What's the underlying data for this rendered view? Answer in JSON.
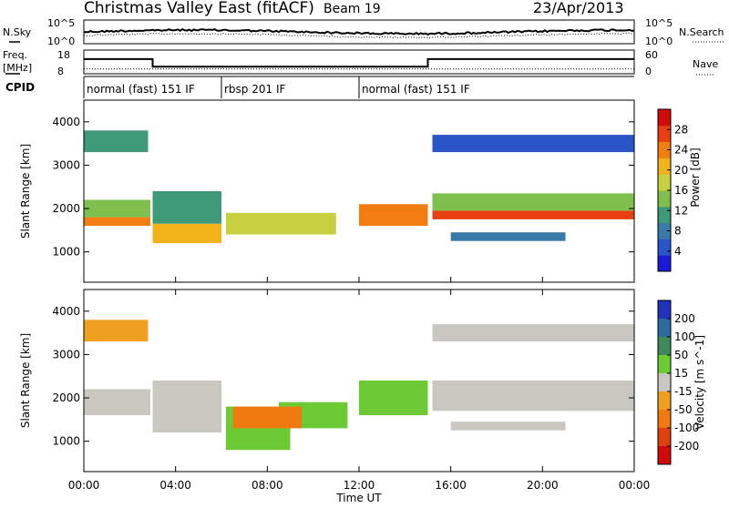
{
  "header": {
    "title": "Christmas Valley East (fitACF)",
    "beam": "Beam 19",
    "date": "23/Apr/2013"
  },
  "noise_panel": {
    "left_label": "N.Sky",
    "right_label": "N.Search",
    "left_ticks": [
      "10^5",
      "10^0"
    ],
    "right_ticks": [
      "10^5",
      "10^0"
    ]
  },
  "freq_panel": {
    "left_label_line1": "Freq.",
    "left_label_line2": "[MHz]",
    "right_label": "Nave",
    "left_ticks": [
      18,
      8
    ],
    "right_ticks": [
      60,
      0
    ],
    "freq_steps": [
      {
        "start_h": 0,
        "end_h": 3,
        "freq": 14.2
      },
      {
        "start_h": 3,
        "end_h": 15,
        "freq": 11.0
      },
      {
        "start_h": 15,
        "end_h": 24,
        "freq": 14.2
      }
    ],
    "nave_level": 12
  },
  "cpid": {
    "label": "CPID",
    "segments": [
      {
        "start_h": 0,
        "end_h": 6,
        "text": "normal (fast) 151 IF"
      },
      {
        "start_h": 6,
        "end_h": 12,
        "text": "rbsp 201 IF"
      },
      {
        "start_h": 12,
        "end_h": 24,
        "text": "normal (fast) 151 IF"
      }
    ]
  },
  "chart_data": [
    {
      "type": "heatmap",
      "name_panel": "power",
      "ylabel": "Slant Range [km]",
      "yticks": [
        1000,
        2000,
        3000,
        4000
      ],
      "ylim": [
        300,
        4500
      ],
      "colorbar": {
        "title": "Power [dB]",
        "ticks": [
          4,
          8,
          12,
          16,
          20,
          24,
          28
        ],
        "range": [
          0,
          32
        ],
        "colors": [
          "#1a1ad8",
          "#2a55c8",
          "#3a7aa8",
          "#3e9a78",
          "#7fbf4d",
          "#c8d040",
          "#f2b21a",
          "#f27d10",
          "#e84010",
          "#d10a0a"
        ]
      },
      "bands": [
        {
          "t0": 0.0,
          "t1": 2.9,
          "r0": 1600,
          "r1": 1800,
          "val": 24
        },
        {
          "t0": 0.0,
          "t1": 2.9,
          "r0": 1800,
          "r1": 2200,
          "val": 14
        },
        {
          "t0": 3.0,
          "t1": 6.0,
          "r0": 1200,
          "r1": 1650,
          "val": 22
        },
        {
          "t0": 3.0,
          "t1": 6.0,
          "r0": 1650,
          "r1": 2400,
          "val": 12
        },
        {
          "t0": 6.2,
          "t1": 11.0,
          "r0": 1400,
          "r1": 1900,
          "val": 17
        },
        {
          "t0": 12.0,
          "t1": 15.0,
          "r0": 1600,
          "r1": 2100,
          "val": 24
        },
        {
          "t0": 15.2,
          "t1": 24.0,
          "r0": 1750,
          "r1": 1950,
          "val": 26
        },
        {
          "t0": 15.2,
          "t1": 24.0,
          "r0": 1950,
          "r1": 2350,
          "val": 14
        },
        {
          "t0": 0.0,
          "t1": 2.8,
          "r0": 3300,
          "r1": 3800,
          "val": 12
        },
        {
          "t0": 15.2,
          "t1": 24.0,
          "r0": 3300,
          "r1": 3700,
          "val": 6
        },
        {
          "t0": 16.0,
          "t1": 21.0,
          "r0": 1250,
          "r1": 1450,
          "val": 9
        }
      ]
    },
    {
      "type": "heatmap",
      "name_panel": "velocity",
      "ylabel": "Slant Range [km]",
      "yticks": [
        1000,
        2000,
        3000,
        4000
      ],
      "ylim": [
        300,
        4500
      ],
      "colorbar": {
        "title": "Velocity [m s^-1]",
        "ticks": [
          200,
          100,
          50,
          15,
          -15,
          -50,
          -100,
          -200
        ],
        "colors": [
          "#2233bb",
          "#2c6aa0",
          "#3e8a5a",
          "#6ccb34",
          "#c8c8c0",
          "#f0a020",
          "#f07a10",
          "#e04010",
          "#d00a0a"
        ]
      },
      "bands": [
        {
          "t0": 0.0,
          "t1": 2.9,
          "r0": 1600,
          "r1": 2200,
          "val": 0
        },
        {
          "t0": 3.0,
          "t1": 6.0,
          "r0": 1200,
          "r1": 2400,
          "val": 0
        },
        {
          "t0": 6.2,
          "t1": 9.0,
          "r0": 800,
          "r1": 1800,
          "val": 40
        },
        {
          "t0": 8.5,
          "t1": 11.5,
          "r0": 1300,
          "r1": 1900,
          "val": 40
        },
        {
          "t0": 6.5,
          "t1": 9.5,
          "r0": 1300,
          "r1": 1800,
          "val": -50
        },
        {
          "t0": 12.0,
          "t1": 15.0,
          "r0": 1600,
          "r1": 2400,
          "val": 40
        },
        {
          "t0": 15.2,
          "t1": 24.0,
          "r0": 1700,
          "r1": 2400,
          "val": 0
        },
        {
          "t0": 16.0,
          "t1": 21.0,
          "r0": 1250,
          "r1": 1450,
          "val": 0
        },
        {
          "t0": 0.0,
          "t1": 2.8,
          "r0": 3300,
          "r1": 3800,
          "val": -30
        },
        {
          "t0": 15.2,
          "t1": 24.0,
          "r0": 3300,
          "r1": 3700,
          "val": 0
        }
      ]
    }
  ],
  "time_axis": {
    "label": "Time UT",
    "ticks": [
      "00:00",
      "04:00",
      "08:00",
      "12:00",
      "16:00",
      "20:00",
      "00:00"
    ],
    "range_h": [
      0,
      24
    ]
  }
}
